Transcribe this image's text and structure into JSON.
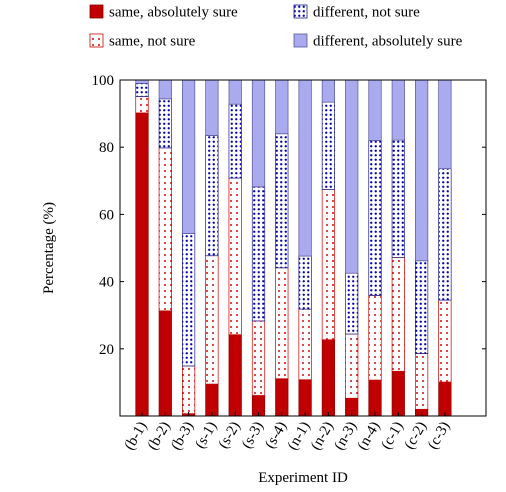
{
  "chart_data": {
    "type": "bar",
    "stacked": true,
    "xlabel": "Experiment ID",
    "ylabel": "Percentage (%)",
    "ylim": [
      0,
      100
    ],
    "yticks": [
      20,
      40,
      60,
      80,
      100
    ],
    "grid": false,
    "legend_position": "top",
    "categories": [
      "(b-1)",
      "(b-2)",
      "(b-3)",
      "(s-1)",
      "(s-2)",
      "(s-3)",
      "(s-4)",
      "(n-1)",
      "(n-2)",
      "(n-3)",
      "(n-4)",
      "(c-1)",
      "(c-2)",
      "(c-3)"
    ],
    "series": [
      {
        "name": "same, absolutely sure",
        "pattern": "solid",
        "fill": "#c00000",
        "edge": "#8b0000",
        "values": [
          90.2,
          31.3,
          0.7,
          9.5,
          24.2,
          6.1,
          11.1,
          10.8,
          22.7,
          5.3,
          10.7,
          13.3,
          2.0,
          10.1
        ]
      },
      {
        "name": "same, not sure",
        "pattern": "dots",
        "fill": "#ffffff",
        "dot": "#cc0000",
        "edge": "#cc0000",
        "values": [
          4.9,
          48.5,
          14.2,
          38.2,
          46.6,
          22.2,
          33.0,
          21.0,
          44.7,
          19.1,
          25.2,
          33.9,
          16.6,
          24.4
        ]
      },
      {
        "name": "different, not sure",
        "pattern": "dots",
        "fill": "#ffffff",
        "dot": "#0000b0",
        "edge": "#1a1a8c",
        "values": [
          3.9,
          14.6,
          39.4,
          35.8,
          22.0,
          39.9,
          39.9,
          15.8,
          26.0,
          18.1,
          46.1,
          34.9,
          27.6,
          39.1
        ]
      },
      {
        "name": "different, absolutely sure",
        "pattern": "solid",
        "fill": "#aaaaee",
        "edge": "#555599",
        "values": [
          1.0,
          5.6,
          45.7,
          16.5,
          7.2,
          31.8,
          16.0,
          52.4,
          6.6,
          57.5,
          18.0,
          17.9,
          53.8,
          26.4
        ]
      }
    ]
  }
}
